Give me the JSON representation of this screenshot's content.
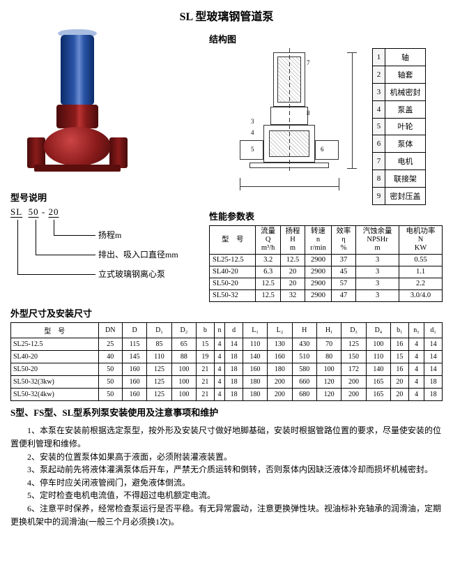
{
  "title": "SL 型玻璃钢管道泵",
  "structure": {
    "heading": "结构图",
    "parts": [
      {
        "n": "1",
        "name": "轴"
      },
      {
        "n": "2",
        "name": "轴套"
      },
      {
        "n": "3",
        "name": "机械密封"
      },
      {
        "n": "4",
        "name": "泵盖"
      },
      {
        "n": "5",
        "name": "叶轮"
      },
      {
        "n": "6",
        "name": "泵体"
      },
      {
        "n": "7",
        "name": "电机"
      },
      {
        "n": "8",
        "name": "联接架"
      },
      {
        "n": "9",
        "name": "密封压盖"
      }
    ]
  },
  "model_explain": {
    "heading": "型号说明",
    "code_parts": [
      "SL",
      "50",
      "-",
      "20"
    ],
    "labels": [
      "扬程m",
      "排出、吸入口直径mm",
      "立式玻璃钢离心泵"
    ]
  },
  "perf": {
    "heading": "性能参数表",
    "cols": [
      "型　号",
      "流量\nQ\nm³/h",
      "扬程\nH\nm",
      "转速\nn\nr/min",
      "效率\nη\n%",
      "汽蚀余量\nNPSHr\nm",
      "电机功率\nN\nKW"
    ],
    "rows": [
      [
        "SL25-12.5",
        "3.2",
        "12.5",
        "2900",
        "37",
        "3",
        "0.55"
      ],
      [
        "SL40-20",
        "6.3",
        "20",
        "2900",
        "45",
        "3",
        "1.1"
      ],
      [
        "SL50-20",
        "12.5",
        "20",
        "2900",
        "57",
        "3",
        "2.2"
      ],
      [
        "SL50-32",
        "12.5",
        "32",
        "2900",
        "47",
        "3",
        "3.0/4.0"
      ]
    ]
  },
  "dim": {
    "heading": "外型尺寸及安装尺寸",
    "cols": [
      "型　号",
      "DN",
      "D",
      "D₁",
      "D₂",
      "b",
      "n",
      "d",
      "L₁",
      "L₂",
      "H",
      "H₁",
      "D₃",
      "D₄",
      "b₁",
      "n₁",
      "d₁"
    ],
    "rows": [
      [
        "SL25-12.5",
        "25",
        "115",
        "85",
        "65",
        "15",
        "4",
        "14",
        "110",
        "130",
        "430",
        "70",
        "125",
        "100",
        "16",
        "4",
        "14"
      ],
      [
        "SL40-20",
        "40",
        "145",
        "110",
        "88",
        "19",
        "4",
        "18",
        "140",
        "160",
        "510",
        "80",
        "150",
        "110",
        "15",
        "4",
        "14"
      ],
      [
        "SL50-20",
        "50",
        "160",
        "125",
        "100",
        "21",
        "4",
        "18",
        "160",
        "180",
        "580",
        "100",
        "172",
        "140",
        "16",
        "4",
        "14"
      ],
      [
        "SL50-32(3kw)",
        "50",
        "160",
        "125",
        "100",
        "21",
        "4",
        "18",
        "180",
        "200",
        "660",
        "120",
        "200",
        "165",
        "20",
        "4",
        "18"
      ],
      [
        "SL50-32(4kw)",
        "50",
        "160",
        "125",
        "100",
        "21",
        "4",
        "18",
        "180",
        "200",
        "680",
        "120",
        "200",
        "165",
        "20",
        "4",
        "18"
      ]
    ]
  },
  "notes": {
    "heading": "S型、FS型、SL型系列泵安装使用及注意事项和维护",
    "items": [
      "1、本泵在安装前根据选定泵型，按外形及安装尺寸做好地脚基础，安装时根据管路位置的要求，尽量使安装的位置便利管理和维修。",
      "2、安装的位置泵体如果高于液面，必须附装灌液装置。",
      "3、泵起动前先将液体灌满泵体后开车，严禁无介质运转和倒转，否则泵体内因缺泛液体冷却而损坏机械密封。",
      "4、停车时应关闭液管阀门，避免液体倒流。",
      "5、定时检查电机电流值，不得超过电机额定电流。",
      "6、注意平时保养，经常检查泵运行是否平稳。有无异常震动，注意更换弹性块。视油标补充轴承的润滑油，定期更换机架中的润滑油(一般三个月必须换1次)。"
    ]
  }
}
